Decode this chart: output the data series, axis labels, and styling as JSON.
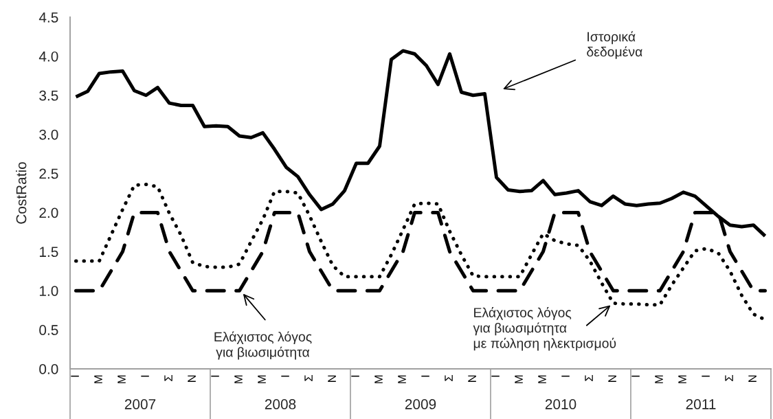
{
  "chart_data": {
    "type": "line",
    "ylabel": "CostRatio",
    "categories": [
      "Ι",
      null,
      "Μ",
      null,
      "Μ",
      null,
      "Ι",
      null,
      "Σ",
      null,
      "Ν",
      null,
      "Ι",
      null,
      "Μ",
      null,
      "Μ",
      null,
      "Ι",
      null,
      "Σ",
      null,
      "Ν",
      null,
      "Ι",
      null,
      "Μ",
      null,
      "Μ",
      null,
      "Ι",
      null,
      "Σ",
      null,
      "Ν",
      null,
      "Ι",
      null,
      "Μ",
      null,
      "Μ",
      null,
      "Ι",
      null,
      "Σ",
      null,
      "Ν",
      null,
      "Ι",
      null,
      "Μ",
      null,
      "Μ",
      null,
      "Ι",
      null,
      "Σ",
      null,
      "Ν",
      null
    ],
    "series": [
      {
        "color": "#000000",
        "line_style": "solid",
        "values": [
          3.48,
          3.55,
          3.78,
          3.8,
          3.81,
          3.56,
          3.5,
          3.6,
          3.4,
          3.37,
          3.37,
          3.1,
          3.11,
          3.1,
          2.98,
          2.96,
          3.02,
          2.81,
          2.58,
          2.46,
          2.23,
          2.04,
          2.11,
          2.28,
          2.63,
          2.63,
          2.85,
          3.96,
          4.07,
          4.03,
          3.88,
          3.64,
          4.03,
          3.54,
          3.5,
          3.52,
          2.45,
          2.29,
          2.27,
          2.28,
          2.41,
          2.23,
          2.25,
          2.28,
          2.14,
          2.09,
          2.21,
          2.11,
          2.09,
          2.11,
          2.12,
          2.18,
          2.26,
          2.21,
          2.08,
          1.95,
          1.84,
          1.82,
          1.84,
          1.7
        ]
      },
      {
        "color": "#000000",
        "line_style": "dashed",
        "values": [
          1,
          1,
          1,
          1.25,
          1.5,
          2,
          2,
          2,
          1.5,
          1.25,
          1,
          1,
          1,
          1,
          1,
          1.25,
          1.5,
          2,
          2,
          2,
          1.5,
          1.25,
          1,
          1,
          1,
          1,
          1,
          1.25,
          1.5,
          2,
          2,
          2,
          1.5,
          1.25,
          1,
          1,
          1,
          1,
          1,
          1.25,
          1.5,
          2,
          2,
          2,
          1.5,
          1.25,
          1,
          1,
          1,
          1,
          1,
          1.25,
          1.5,
          2,
          2,
          2,
          1.5,
          1.25,
          1,
          1
        ]
      },
      {
        "color": "#000000",
        "line_style": "dotted",
        "values": [
          1.38,
          1.38,
          1.38,
          1.71,
          2.04,
          2.35,
          2.36,
          2.33,
          1.99,
          1.71,
          1.36,
          1.31,
          1.3,
          1.3,
          1.34,
          1.63,
          1.91,
          2.27,
          2.27,
          2.25,
          1.96,
          1.63,
          1.32,
          1.18,
          1.18,
          1.18,
          1.18,
          1.46,
          1.78,
          2.11,
          2.12,
          2.11,
          1.76,
          1.46,
          1.19,
          1.18,
          1.18,
          1.18,
          1.18,
          1.46,
          1.73,
          1.64,
          1.6,
          1.58,
          1.38,
          1.1,
          0.84,
          0.83,
          0.83,
          0.82,
          0.82,
          1.07,
          1.29,
          1.51,
          1.54,
          1.48,
          1.25,
          0.94,
          0.7,
          0.63
        ]
      }
    ],
    "ylim": [
      0,
      4.5
    ],
    "yticks": [
      {
        "value": 0,
        "label": "0.0"
      },
      {
        "value": 0.5,
        "label": "0.5"
      },
      {
        "value": 1,
        "label": "1.0"
      },
      {
        "value": 1.5,
        "label": "1.5"
      },
      {
        "value": 2,
        "label": "2.0"
      },
      {
        "value": 2.5,
        "label": "2.5"
      },
      {
        "value": 3,
        "label": "3.0"
      },
      {
        "value": 3.5,
        "label": "3.5"
      },
      {
        "value": 4,
        "label": "4.0"
      },
      {
        "value": 4.5,
        "label": "4.5"
      }
    ],
    "grid": false,
    "legend": false,
    "annotations": [
      "2007",
      "2008",
      "2009",
      "2010",
      "2011",
      "Ιστορικά\nδεδομένα",
      "Ελάχιστος λόγος\nγια βιωσιμότητα",
      "Ελάχιστος λόγος\nγια βιωσιμότητα\nμε πώληση ηλεκτρισμού"
    ]
  }
}
